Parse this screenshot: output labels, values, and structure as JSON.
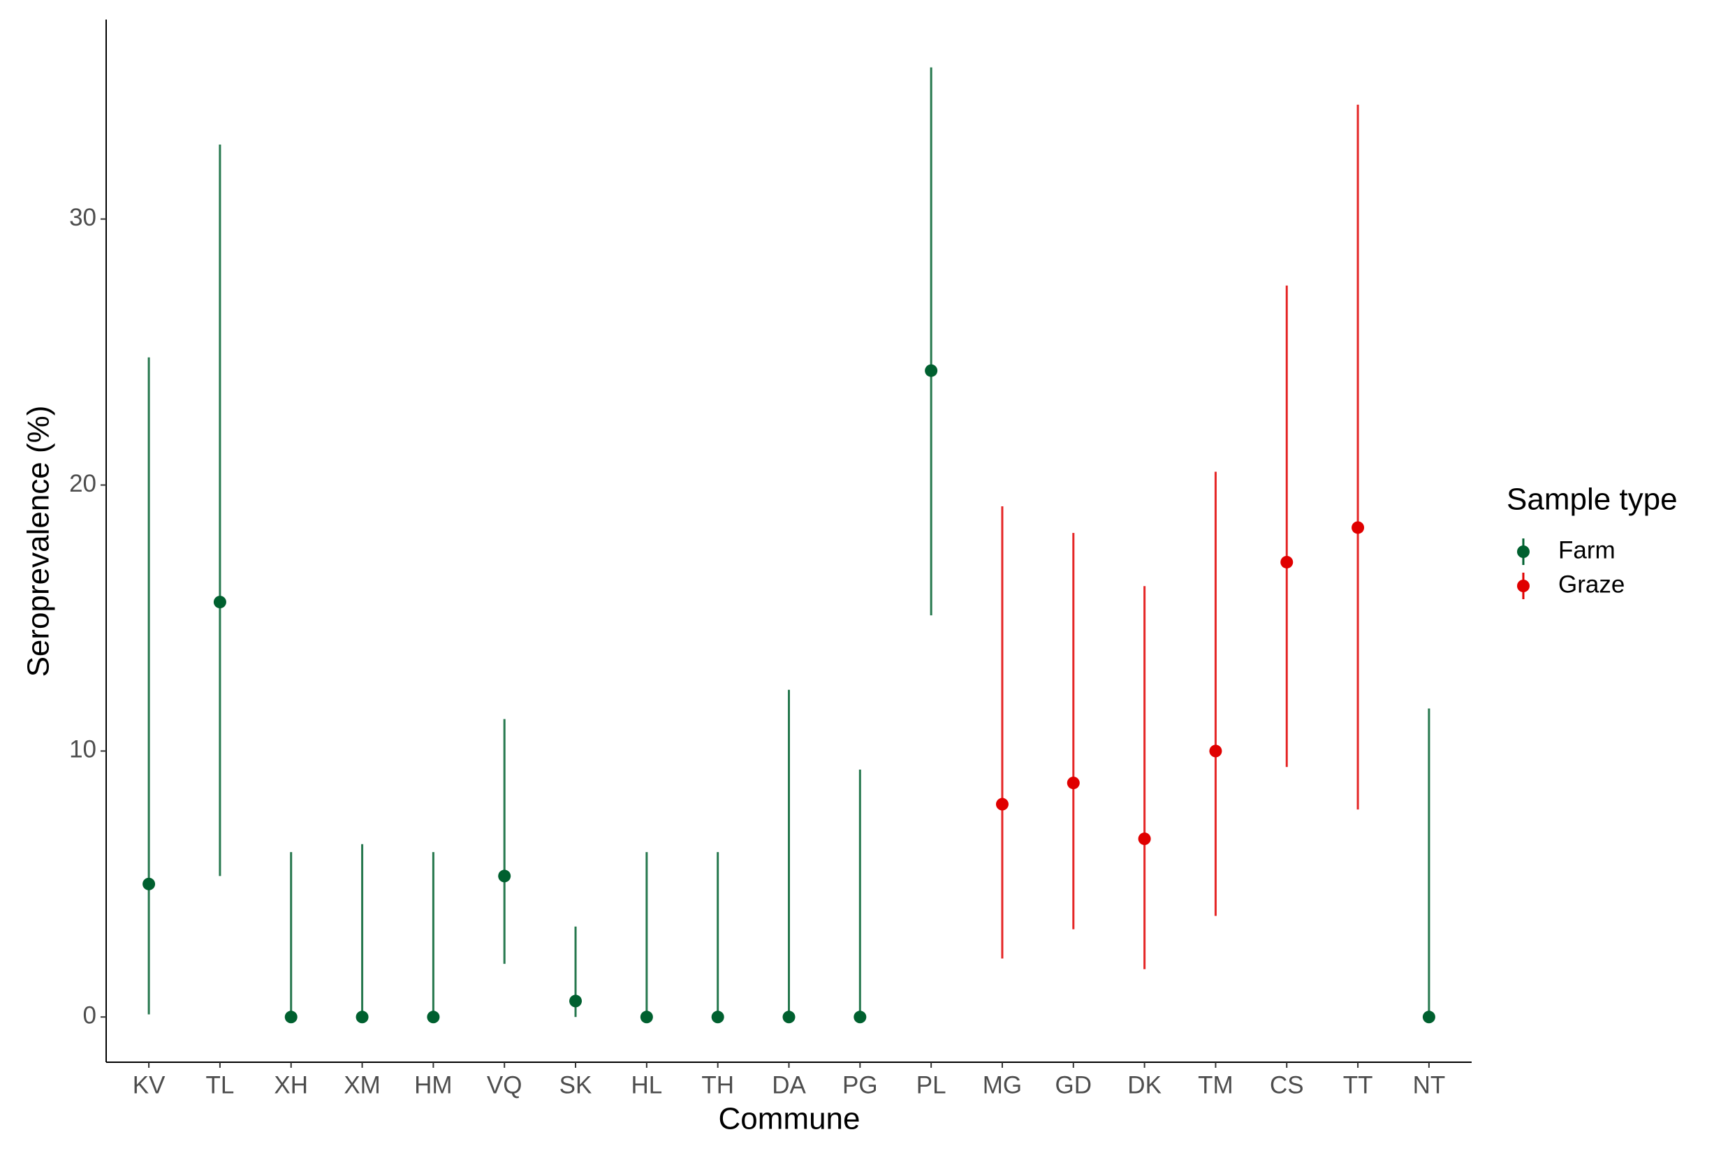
{
  "chart_data": {
    "type": "pointrange",
    "x_label": "Commune",
    "y_label": "Seroprevalence (%)",
    "legend_title": "Sample type",
    "legend_position": "right",
    "categories": [
      "KV",
      "TL",
      "XH",
      "XM",
      "HM",
      "VQ",
      "SK",
      "HL",
      "TH",
      "DA",
      "PG",
      "PL",
      "MG",
      "GD",
      "DK",
      "TM",
      "CS",
      "TT",
      "NT"
    ],
    "series": [
      {
        "name": "Farm",
        "color": "#00602f",
        "values": [
          5.0,
          15.6,
          0,
          0,
          0,
          5.3,
          0.6,
          0,
          0,
          0,
          0,
          24.3,
          null,
          null,
          null,
          null,
          null,
          null,
          0
        ],
        "lower": [
          0.1,
          5.3,
          0,
          0,
          0,
          2.0,
          0,
          0,
          0,
          0,
          0,
          15.1,
          null,
          null,
          null,
          null,
          null,
          null,
          0
        ],
        "upper": [
          24.8,
          32.8,
          6.2,
          6.5,
          6.2,
          11.2,
          3.4,
          6.2,
          6.2,
          12.3,
          9.3,
          35.7,
          null,
          null,
          null,
          null,
          null,
          null,
          11.6
        ]
      },
      {
        "name": "Graze",
        "color": "#e00000",
        "values": [
          null,
          null,
          null,
          null,
          null,
          null,
          null,
          null,
          null,
          null,
          null,
          null,
          8.0,
          8.8,
          6.7,
          10.0,
          17.1,
          18.4,
          null
        ],
        "lower": [
          null,
          null,
          null,
          null,
          null,
          null,
          null,
          null,
          null,
          null,
          null,
          null,
          2.2,
          3.3,
          1.8,
          3.8,
          9.4,
          7.8,
          null
        ],
        "upper": [
          null,
          null,
          null,
          null,
          null,
          null,
          null,
          null,
          null,
          null,
          null,
          null,
          19.2,
          18.2,
          16.2,
          20.5,
          27.5,
          34.3,
          null
        ]
      }
    ],
    "ylim": [
      -1.7,
      37.5
    ],
    "yticks": [
      0,
      10,
      20,
      30
    ],
    "grid": false
  }
}
